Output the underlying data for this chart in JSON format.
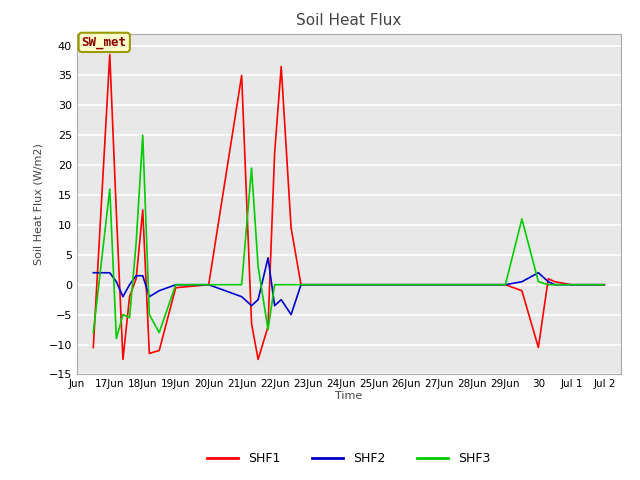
{
  "title": "Soil Heat Flux",
  "ylabel": "Soil Heat Flux (W/m2)",
  "xlabel": "Time",
  "ylim": [
    -15,
    42
  ],
  "yticks": [
    -15,
    -10,
    -5,
    0,
    5,
    10,
    15,
    20,
    25,
    30,
    35,
    40
  ],
  "background_color": "#ffffff",
  "plot_bg_color": "#e8e8e8",
  "grid_color": "#ffffff",
  "annotation_text": "SW_met",
  "annotation_bg": "#ffffcc",
  "annotation_border": "#999900",
  "annotation_text_color": "#880000",
  "legend_entries": [
    "SHF1",
    "SHF2",
    "SHF3"
  ],
  "line_colors": [
    "#ff0000",
    "#0000cc",
    "#00cc00"
  ],
  "shf1": [
    [
      16.5,
      -10.5
    ],
    [
      17.0,
      38.5
    ],
    [
      17.2,
      12.0
    ],
    [
      17.4,
      -12.5
    ],
    [
      17.6,
      -2.0
    ],
    [
      17.8,
      1.0
    ],
    [
      18.0,
      12.5
    ],
    [
      18.2,
      -11.5
    ],
    [
      18.5,
      -11.0
    ],
    [
      19.0,
      -0.5
    ],
    [
      20.0,
      0.0
    ],
    [
      21.0,
      35.0
    ],
    [
      21.3,
      -6.5
    ],
    [
      21.5,
      -12.5
    ],
    [
      21.8,
      -7.0
    ],
    [
      22.0,
      22.0
    ],
    [
      22.2,
      36.5
    ],
    [
      22.5,
      9.5
    ],
    [
      22.8,
      0.0
    ],
    [
      23.0,
      0.0
    ],
    [
      24.0,
      0.0
    ],
    [
      25.0,
      0.0
    ],
    [
      26.0,
      0.0
    ],
    [
      27.0,
      0.0
    ],
    [
      28.0,
      0.0
    ],
    [
      29.0,
      0.0
    ],
    [
      29.5,
      -1.0
    ],
    [
      30.0,
      -10.5
    ],
    [
      30.3,
      1.0
    ],
    [
      30.5,
      0.5
    ],
    [
      31.0,
      0.0
    ],
    [
      32.0,
      0.0
    ]
  ],
  "shf2": [
    [
      16.5,
      2.0
    ],
    [
      17.0,
      2.0
    ],
    [
      17.2,
      0.5
    ],
    [
      17.4,
      -2.0
    ],
    [
      17.6,
      0.0
    ],
    [
      17.8,
      1.5
    ],
    [
      18.0,
      1.5
    ],
    [
      18.2,
      -2.0
    ],
    [
      18.5,
      -1.0
    ],
    [
      19.0,
      0.0
    ],
    [
      20.0,
      0.0
    ],
    [
      21.0,
      -2.0
    ],
    [
      21.3,
      -3.5
    ],
    [
      21.5,
      -2.5
    ],
    [
      21.8,
      4.5
    ],
    [
      22.0,
      -3.5
    ],
    [
      22.2,
      -2.5
    ],
    [
      22.5,
      -5.0
    ],
    [
      22.8,
      0.0
    ],
    [
      23.0,
      0.0
    ],
    [
      24.0,
      0.0
    ],
    [
      25.0,
      0.0
    ],
    [
      26.0,
      0.0
    ],
    [
      27.0,
      0.0
    ],
    [
      28.0,
      0.0
    ],
    [
      29.0,
      0.0
    ],
    [
      29.5,
      0.5
    ],
    [
      30.0,
      2.0
    ],
    [
      30.3,
      0.5
    ],
    [
      30.5,
      0.0
    ],
    [
      31.0,
      0.0
    ],
    [
      32.0,
      0.0
    ]
  ],
  "shf3": [
    [
      16.5,
      -8.0
    ],
    [
      17.0,
      16.0
    ],
    [
      17.2,
      -9.0
    ],
    [
      17.4,
      -5.0
    ],
    [
      17.6,
      -5.5
    ],
    [
      17.8,
      7.0
    ],
    [
      18.0,
      25.0
    ],
    [
      18.2,
      -5.0
    ],
    [
      18.5,
      -8.0
    ],
    [
      19.0,
      0.0
    ],
    [
      20.0,
      0.0
    ],
    [
      21.0,
      0.0
    ],
    [
      21.3,
      19.5
    ],
    [
      21.5,
      3.0
    ],
    [
      21.8,
      -7.5
    ],
    [
      22.0,
      0.0
    ],
    [
      22.2,
      0.0
    ],
    [
      22.5,
      0.0
    ],
    [
      22.8,
      0.0
    ],
    [
      23.0,
      0.0
    ],
    [
      24.0,
      0.0
    ],
    [
      25.0,
      0.0
    ],
    [
      26.0,
      0.0
    ],
    [
      27.0,
      0.0
    ],
    [
      28.0,
      0.0
    ],
    [
      29.0,
      0.0
    ],
    [
      29.5,
      11.0
    ],
    [
      30.0,
      0.5
    ],
    [
      30.3,
      0.0
    ],
    [
      30.5,
      0.0
    ],
    [
      31.0,
      0.0
    ],
    [
      32.0,
      0.0
    ]
  ],
  "x_tick_labels": [
    "Jun",
    "17Jun",
    "18Jun",
    "19Jun",
    "20Jun",
    "21Jun",
    "22Jun",
    "23Jun",
    "24Jun",
    "25Jun",
    "26Jun",
    "27Jun",
    "28Jun",
    "29Jun",
    "30",
    "Jul 1",
    "Jul 2"
  ],
  "x_tick_positions": [
    16.0,
    17.0,
    18.0,
    19.0,
    20.0,
    21.0,
    22.0,
    23.0,
    24.0,
    25.0,
    26.0,
    27.0,
    28.0,
    29.0,
    30.0,
    31.0,
    32.0
  ],
  "xlim": [
    16.0,
    32.5
  ]
}
